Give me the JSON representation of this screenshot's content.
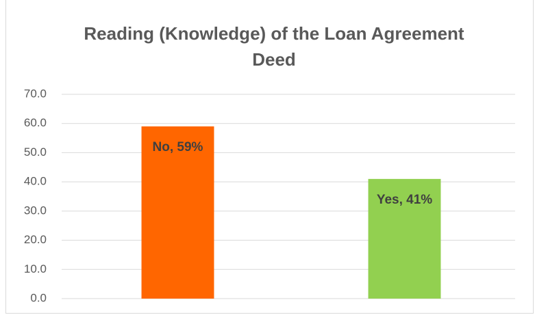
{
  "chart_data": {
    "type": "bar",
    "title": "Reading (Knowledge) of the Loan Agreement Deed",
    "values": [
      59,
      41
    ],
    "value_labels": [
      "No, 59%",
      "Yes, 41%"
    ],
    "colors": [
      "#ff6600",
      "#92d050"
    ],
    "ylim": [
      0,
      70
    ],
    "yticks": [
      {
        "value": 0,
        "label": "0.0"
      },
      {
        "value": 10,
        "label": "10.0"
      },
      {
        "value": 20,
        "label": "20.0"
      },
      {
        "value": 30,
        "label": "30.0"
      },
      {
        "value": 40,
        "label": "40.0"
      },
      {
        "value": 50,
        "label": "50.0"
      },
      {
        "value": 60,
        "label": "60.0"
      },
      {
        "value": 70,
        "label": "70.0"
      }
    ],
    "grid": true
  }
}
